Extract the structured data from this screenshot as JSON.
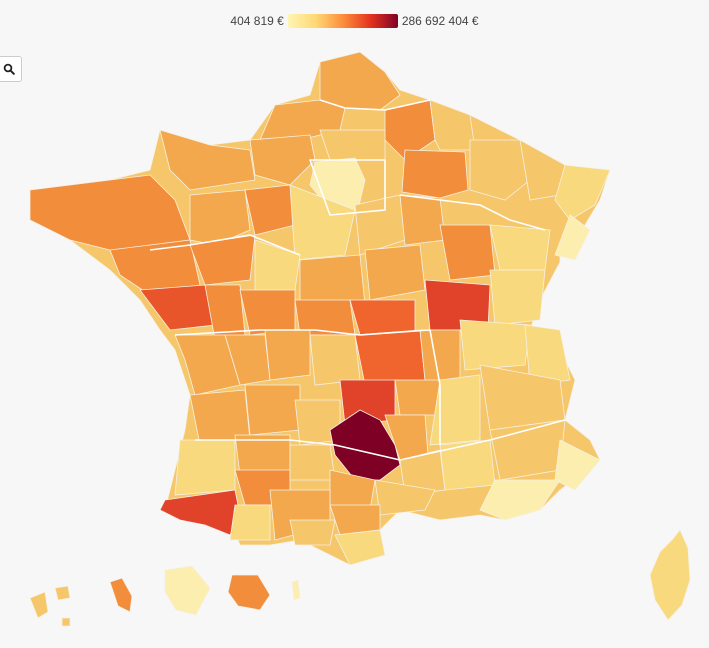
{
  "legend": {
    "min_label": "404 819 €",
    "max_label": "286 692 404 €",
    "colors": [
      "#fff5b2",
      "#fed976",
      "#fd8d3c",
      "#e3331f",
      "#800026"
    ]
  },
  "search": {
    "icon": "search-icon"
  },
  "palette": {
    "pale": "#fbeeae",
    "light": "#f8d97e",
    "mid_light": "#f6c66a",
    "mid": "#f3a84d",
    "orange": "#f28d3c",
    "red_orange": "#e8552b",
    "red": "#e0422a",
    "max": "#7e0025"
  }
}
